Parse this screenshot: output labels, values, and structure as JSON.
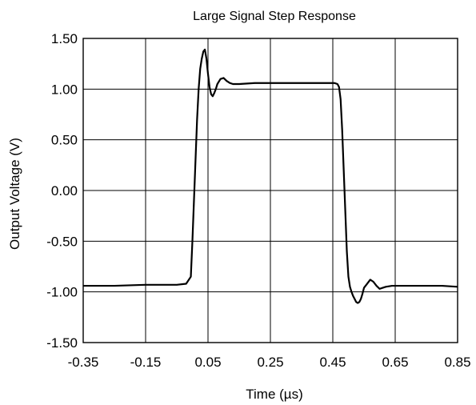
{
  "chart_data": {
    "type": "line",
    "title": "Large Signal Step Response",
    "xlabel": "Time (µs)",
    "ylabel": "Output Voltage (V)",
    "xlim": [
      -0.35,
      0.85
    ],
    "ylim": [
      -1.5,
      1.5
    ],
    "grid": true,
    "x_ticks": [
      -0.35,
      -0.15,
      0.05,
      0.25,
      0.45,
      0.65,
      0.85
    ],
    "x_tick_labels": [
      "-0.35",
      "-0.15",
      "0.05",
      "0.25",
      "0.45",
      "0.65",
      "0.85"
    ],
    "y_ticks": [
      1.5,
      1.0,
      0.5,
      0.0,
      -0.5,
      -1.0,
      -1.5
    ],
    "y_tick_labels": [
      "1.50",
      "1.00",
      "0.50",
      "0.00",
      "-0.50",
      "-1.00",
      "-1.50"
    ],
    "series": [
      {
        "x": [
          -0.35,
          -0.25,
          -0.15,
          -0.05,
          -0.02,
          -0.005,
          0.0,
          0.005,
          0.01,
          0.015,
          0.02,
          0.025,
          0.03,
          0.035,
          0.04,
          0.045,
          0.05,
          0.055,
          0.06,
          0.065,
          0.07,
          0.075,
          0.08,
          0.09,
          0.1,
          0.11,
          0.12,
          0.13,
          0.15,
          0.2,
          0.25,
          0.3,
          0.35,
          0.4,
          0.44,
          0.455,
          0.465,
          0.47,
          0.475,
          0.48,
          0.485,
          0.49,
          0.495,
          0.5,
          0.505,
          0.51,
          0.515,
          0.52,
          0.525,
          0.53,
          0.535,
          0.54,
          0.545,
          0.55,
          0.56,
          0.57,
          0.58,
          0.59,
          0.6,
          0.61,
          0.62,
          0.64,
          0.7,
          0.75,
          0.8,
          0.85
        ],
        "y": [
          -0.94,
          -0.94,
          -0.93,
          -0.93,
          -0.92,
          -0.85,
          -0.5,
          -0.1,
          0.3,
          0.7,
          1.0,
          1.2,
          1.3,
          1.37,
          1.39,
          1.3,
          1.15,
          1.02,
          0.95,
          0.93,
          0.96,
          1.0,
          1.05,
          1.1,
          1.11,
          1.08,
          1.06,
          1.05,
          1.05,
          1.06,
          1.06,
          1.06,
          1.06,
          1.06,
          1.06,
          1.06,
          1.05,
          1.02,
          0.9,
          0.6,
          0.2,
          -0.2,
          -0.6,
          -0.85,
          -0.95,
          -1.0,
          -1.04,
          -1.07,
          -1.1,
          -1.11,
          -1.1,
          -1.07,
          -1.02,
          -0.96,
          -0.92,
          -0.88,
          -0.9,
          -0.94,
          -0.97,
          -0.96,
          -0.95,
          -0.94,
          -0.94,
          -0.94,
          -0.94,
          -0.95
        ]
      }
    ]
  }
}
